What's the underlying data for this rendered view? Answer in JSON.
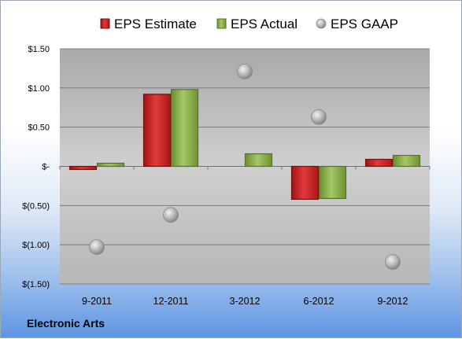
{
  "company": "Electronic Arts",
  "colors": {
    "estimate": "#d42a2a",
    "actual": "#8db24a",
    "gaap": "#a8a8a8"
  },
  "chart_data": {
    "type": "bar",
    "categories": [
      "9-2011",
      "12-2011",
      "3-2012",
      "6-2012",
      "9-2012"
    ],
    "series": [
      {
        "name": "EPS Estimate",
        "kind": "bar",
        "values": [
          -0.04,
          0.92,
          null,
          -0.42,
          0.09
        ]
      },
      {
        "name": "EPS Actual",
        "kind": "bar",
        "values": [
          0.04,
          0.98,
          0.16,
          -0.41,
          0.14
        ]
      },
      {
        "name": "EPS GAAP",
        "kind": "scatter",
        "values": [
          -1.03,
          -0.62,
          1.21,
          0.63,
          -1.22
        ]
      }
    ],
    "yticks": [
      1.5,
      1.0,
      0.5,
      0,
      -0.5,
      -1.0,
      -1.5
    ],
    "ytick_labels": [
      "$1.50",
      "$1.00",
      "$0.50",
      "$-",
      "$(0.50)",
      "$(1.00)",
      "$(1.50)"
    ],
    "ylim": [
      -1.5,
      1.5
    ],
    "legend_position": "top",
    "grid": true
  }
}
